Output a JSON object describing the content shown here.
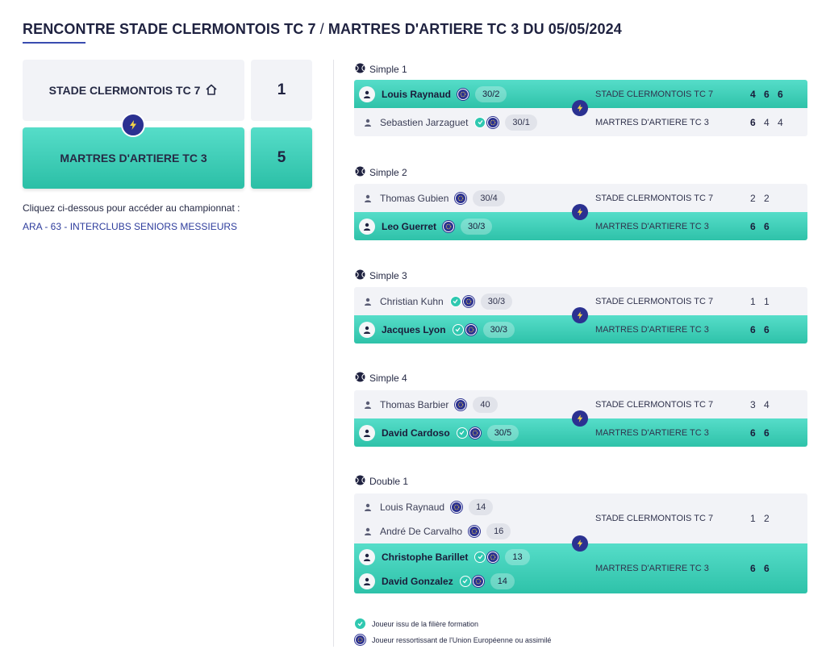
{
  "header": {
    "title_main": "RENCONTRE STADE CLERMONTOIS TC 7",
    "title_sep": "/",
    "title_rest": "MARTRES D'ARTIERE TC 3 DU 05/05/2024"
  },
  "score": {
    "home_team": "STADE CLERMONTOIS TC 7",
    "home_score": "1",
    "away_team": "MARTRES D'ARTIERE TC 3",
    "away_score": "5"
  },
  "championship": {
    "hint": "Cliquez ci-dessous pour accéder au championnat :",
    "link": "ARA - 63 - INTERCLUBS SENIORS MESSIEURS"
  },
  "matches": [
    {
      "label": "Simple 1",
      "home": {
        "players": [
          {
            "name": "Louis Raynaud",
            "rank": "30/2"
          }
        ],
        "club": "STADE CLERMONTOIS TC 7",
        "sets": [
          "4",
          "6",
          "6"
        ]
      },
      "away": {
        "players": [
          {
            "name": "Sebastien Jarzaguet",
            "rank": "30/1"
          }
        ],
        "club": "MARTRES D'ARTIERE TC 3",
        "sets": [
          "6",
          "4",
          "4"
        ]
      }
    },
    {
      "label": "Simple 2",
      "home": {
        "players": [
          {
            "name": "Thomas Gubien",
            "rank": "30/4"
          }
        ],
        "club": "STADE CLERMONTOIS TC 7",
        "sets": [
          "2",
          "2"
        ]
      },
      "away": {
        "players": [
          {
            "name": "Leo Guerret",
            "rank": "30/3"
          }
        ],
        "club": "MARTRES D'ARTIERE TC 3",
        "sets": [
          "6",
          "6"
        ]
      }
    },
    {
      "label": "Simple 3",
      "home": {
        "players": [
          {
            "name": "Christian Kuhn",
            "rank": "30/3"
          }
        ],
        "club": "STADE CLERMONTOIS TC 7",
        "sets": [
          "1",
          "1"
        ]
      },
      "away": {
        "players": [
          {
            "name": "Jacques Lyon",
            "rank": "30/3"
          }
        ],
        "club": "MARTRES D'ARTIERE TC 3",
        "sets": [
          "6",
          "6"
        ]
      }
    },
    {
      "label": "Simple 4",
      "home": {
        "players": [
          {
            "name": "Thomas Barbier",
            "rank": "40"
          }
        ],
        "club": "STADE CLERMONTOIS TC 7",
        "sets": [
          "3",
          "4"
        ]
      },
      "away": {
        "players": [
          {
            "name": "David Cardoso",
            "rank": "30/5"
          }
        ],
        "club": "MARTRES D'ARTIERE TC 3",
        "sets": [
          "6",
          "6"
        ]
      }
    },
    {
      "label": "Double 1",
      "home": {
        "players": [
          {
            "name": "Louis Raynaud",
            "rank": "14"
          },
          {
            "name": "André De Carvalho",
            "rank": "16"
          }
        ],
        "club": "STADE CLERMONTOIS TC 7",
        "sets": [
          "1",
          "2"
        ]
      },
      "away": {
        "players": [
          {
            "name": "Christophe Barillet",
            "rank": "13"
          },
          {
            "name": "David Gonzalez",
            "rank": "14"
          }
        ],
        "club": "MARTRES D'ARTIERE TC 3",
        "sets": [
          "6",
          "6"
        ]
      }
    }
  ],
  "legend": {
    "formation": "Joueur issu de la filière formation",
    "eu": "Joueur ressortissant de l'Union Européenne ou assimilé"
  },
  "icons": {
    "home_team_icon": "home-icon",
    "vs_icon": "lightning-icon",
    "match_icon": "tennis-ball-icon",
    "player_icon": "person-icon",
    "eu_badge_icon": "eu-stars-icon",
    "formation_badge_icon": "formation-icon"
  },
  "colors": {
    "accent_teal": "#2ec2a9",
    "navy": "#2b3191",
    "link_blue": "#2d3c9c",
    "row_grey": "#f2f3f7"
  }
}
